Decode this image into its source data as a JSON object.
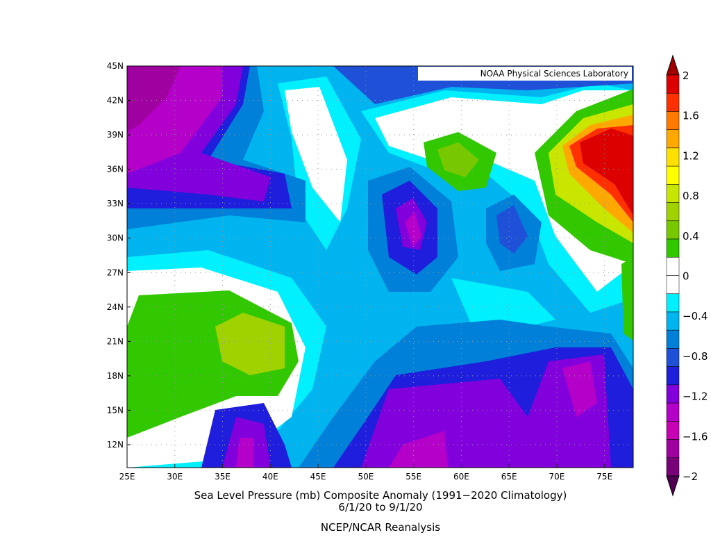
{
  "map": {
    "credit": "NOAA Physical Sciences Laboratory",
    "x_labels": [
      "25E",
      "30E",
      "35E",
      "40E",
      "45E",
      "50E",
      "55E",
      "60E",
      "65E",
      "70E",
      "75E"
    ],
    "y_labels": [
      "45N",
      "42N",
      "39N",
      "36N",
      "33N",
      "30N",
      "27N",
      "24N",
      "21N",
      "18N",
      "15N",
      "12N"
    ],
    "title": "Sea Level Pressure (mb) Composite Anomaly (1991−2020 Climatology)",
    "date_range": "6/1/20  to 9/1/20",
    "source": "NCEP/NCAR Reanalysis",
    "colorbar": {
      "labels": [
        "2",
        "1.6",
        "1.2",
        "0.8",
        "0.4",
        "0",
        "−0.4",
        "−0.8",
        "−1.2",
        "−1.6",
        "−2"
      ],
      "colors": [
        "#a00000",
        "#dc0000",
        "#ff3000",
        "#ff7800",
        "#ffa800",
        "#ffe000",
        "#ffff00",
        "#c8e600",
        "#a0d200",
        "#78c800",
        "#32c800",
        "#ffffff",
        "#ffffff",
        "#00f0ff",
        "#00b4f0",
        "#0080d8",
        "#1e50d8",
        "#1e1edc",
        "#8200dc",
        "#b400c8",
        "#c800b4",
        "#a000a0",
        "#780078",
        "#500050"
      ]
    }
  }
}
